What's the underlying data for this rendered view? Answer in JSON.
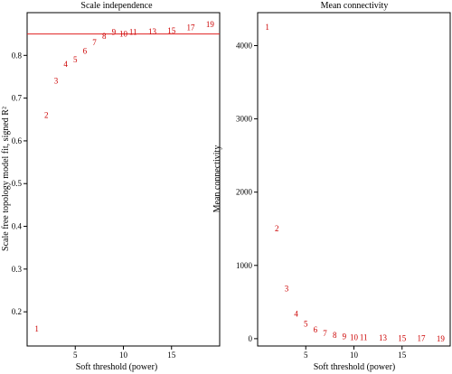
{
  "colors": {
    "points": "#cc0000",
    "reference_line": "#e02020",
    "axes": "#000000"
  },
  "chart_data": [
    {
      "type": "scatter",
      "title": "Scale independence",
      "xlabel": "Soft threshold (power)",
      "ylabel": "Scale free topology model fit, signed R²",
      "xlim": [
        0,
        20
      ],
      "ylim": [
        0.12,
        0.9
      ],
      "xticks": [
        5,
        10,
        15
      ],
      "yticks": [
        0.2,
        0.3,
        0.4,
        0.5,
        0.6,
        0.7,
        0.8
      ],
      "tick_labels_x": [
        "5",
        "10",
        "15"
      ],
      "tick_labels_y": [
        "0.2",
        "0.3",
        "0.4",
        "0.5",
        "0.6",
        "0.7",
        "0.8"
      ],
      "reference_line_y": 0.85,
      "points": [
        {
          "label": "1",
          "x": 1,
          "y": 0.16
        },
        {
          "label": "2",
          "x": 2,
          "y": 0.66
        },
        {
          "label": "3",
          "x": 3,
          "y": 0.74
        },
        {
          "label": "4",
          "x": 4,
          "y": 0.78
        },
        {
          "label": "5",
          "x": 5,
          "y": 0.79
        },
        {
          "label": "6",
          "x": 6,
          "y": 0.81
        },
        {
          "label": "7",
          "x": 7,
          "y": 0.83
        },
        {
          "label": "8",
          "x": 8,
          "y": 0.845
        },
        {
          "label": "9",
          "x": 9,
          "y": 0.855
        },
        {
          "label": "10",
          "x": 10,
          "y": 0.85
        },
        {
          "label": "11",
          "x": 11,
          "y": 0.855
        },
        {
          "label": "13",
          "x": 13,
          "y": 0.856
        },
        {
          "label": "15",
          "x": 15,
          "y": 0.858
        },
        {
          "label": "17",
          "x": 17,
          "y": 0.865
        },
        {
          "label": "19",
          "x": 19,
          "y": 0.872
        }
      ],
      "grid": false,
      "legend": "none"
    },
    {
      "type": "scatter",
      "title": "Mean connectivity",
      "xlabel": "Soft threshold (power)",
      "ylabel": "Mean connectivity",
      "xlim": [
        0,
        20
      ],
      "ylim": [
        -100,
        4450
      ],
      "xticks": [
        5,
        10,
        15
      ],
      "yticks": [
        0,
        1000,
        2000,
        3000,
        4000
      ],
      "tick_labels_x": [
        "5",
        "10",
        "15"
      ],
      "tick_labels_y": [
        "0",
        "1000",
        "2000",
        "3000",
        "4000"
      ],
      "points": [
        {
          "label": "1",
          "x": 1,
          "y": 4250
        },
        {
          "label": "2",
          "x": 2,
          "y": 1500
        },
        {
          "label": "3",
          "x": 3,
          "y": 680
        },
        {
          "label": "4",
          "x": 4,
          "y": 340
        },
        {
          "label": "5",
          "x": 5,
          "y": 200
        },
        {
          "label": "6",
          "x": 6,
          "y": 120
        },
        {
          "label": "7",
          "x": 7,
          "y": 70
        },
        {
          "label": "8",
          "x": 8,
          "y": 45
        },
        {
          "label": "9",
          "x": 9,
          "y": 30
        },
        {
          "label": "10",
          "x": 10,
          "y": 20
        },
        {
          "label": "11",
          "x": 11,
          "y": 15
        },
        {
          "label": "13",
          "x": 13,
          "y": 8
        },
        {
          "label": "15",
          "x": 15,
          "y": 4
        },
        {
          "label": "17",
          "x": 17,
          "y": 2
        },
        {
          "label": "19",
          "x": 19,
          "y": 1
        }
      ],
      "grid": false,
      "legend": "none"
    }
  ]
}
